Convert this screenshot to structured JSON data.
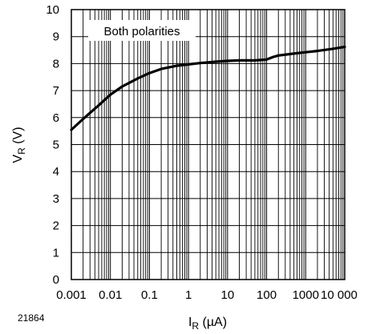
{
  "chart_data": {
    "type": "line",
    "figure_id": "21864",
    "annotation": "Both polarities",
    "xlabel": {
      "main": "I",
      "sub": "R",
      "unit": " (µA)"
    },
    "ylabel": {
      "main": "V",
      "sub": "R",
      "unit": " (V)"
    },
    "x_scale": "log",
    "xlim": [
      0.001,
      10000
    ],
    "ylim": [
      0,
      10
    ],
    "grid": true,
    "x_ticks": [
      {
        "value": 0.001,
        "label": "0.001"
      },
      {
        "value": 0.01,
        "label": "0.01"
      },
      {
        "value": 0.1,
        "label": "0.1"
      },
      {
        "value": 1,
        "label": "1"
      },
      {
        "value": 10,
        "label": "10"
      },
      {
        "value": 100,
        "label": "100"
      },
      {
        "value": 1000,
        "label": "1000"
      },
      {
        "value": 10000,
        "label": "10 000"
      }
    ],
    "y_ticks": [
      {
        "value": 0,
        "label": "0"
      },
      {
        "value": 1,
        "label": "1"
      },
      {
        "value": 2,
        "label": "2"
      },
      {
        "value": 3,
        "label": "3"
      },
      {
        "value": 4,
        "label": "4"
      },
      {
        "value": 5,
        "label": "5"
      },
      {
        "value": 6,
        "label": "6"
      },
      {
        "value": 7,
        "label": "7"
      },
      {
        "value": 8,
        "label": "8"
      },
      {
        "value": 9,
        "label": "9"
      },
      {
        "value": 10,
        "label": "10"
      }
    ],
    "series": [
      {
        "x": [
          0.001,
          0.002,
          0.005,
          0.01,
          0.02,
          0.05,
          0.1,
          0.2,
          0.5,
          1,
          2,
          5,
          10,
          20,
          50,
          100,
          150,
          200,
          500,
          1000,
          2000,
          5000,
          10000
        ],
        "y": [
          5.55,
          5.95,
          6.45,
          6.85,
          7.15,
          7.45,
          7.65,
          7.8,
          7.92,
          7.97,
          8.02,
          8.07,
          8.1,
          8.12,
          8.12,
          8.15,
          8.25,
          8.3,
          8.37,
          8.42,
          8.47,
          8.55,
          8.62
        ]
      }
    ]
  }
}
